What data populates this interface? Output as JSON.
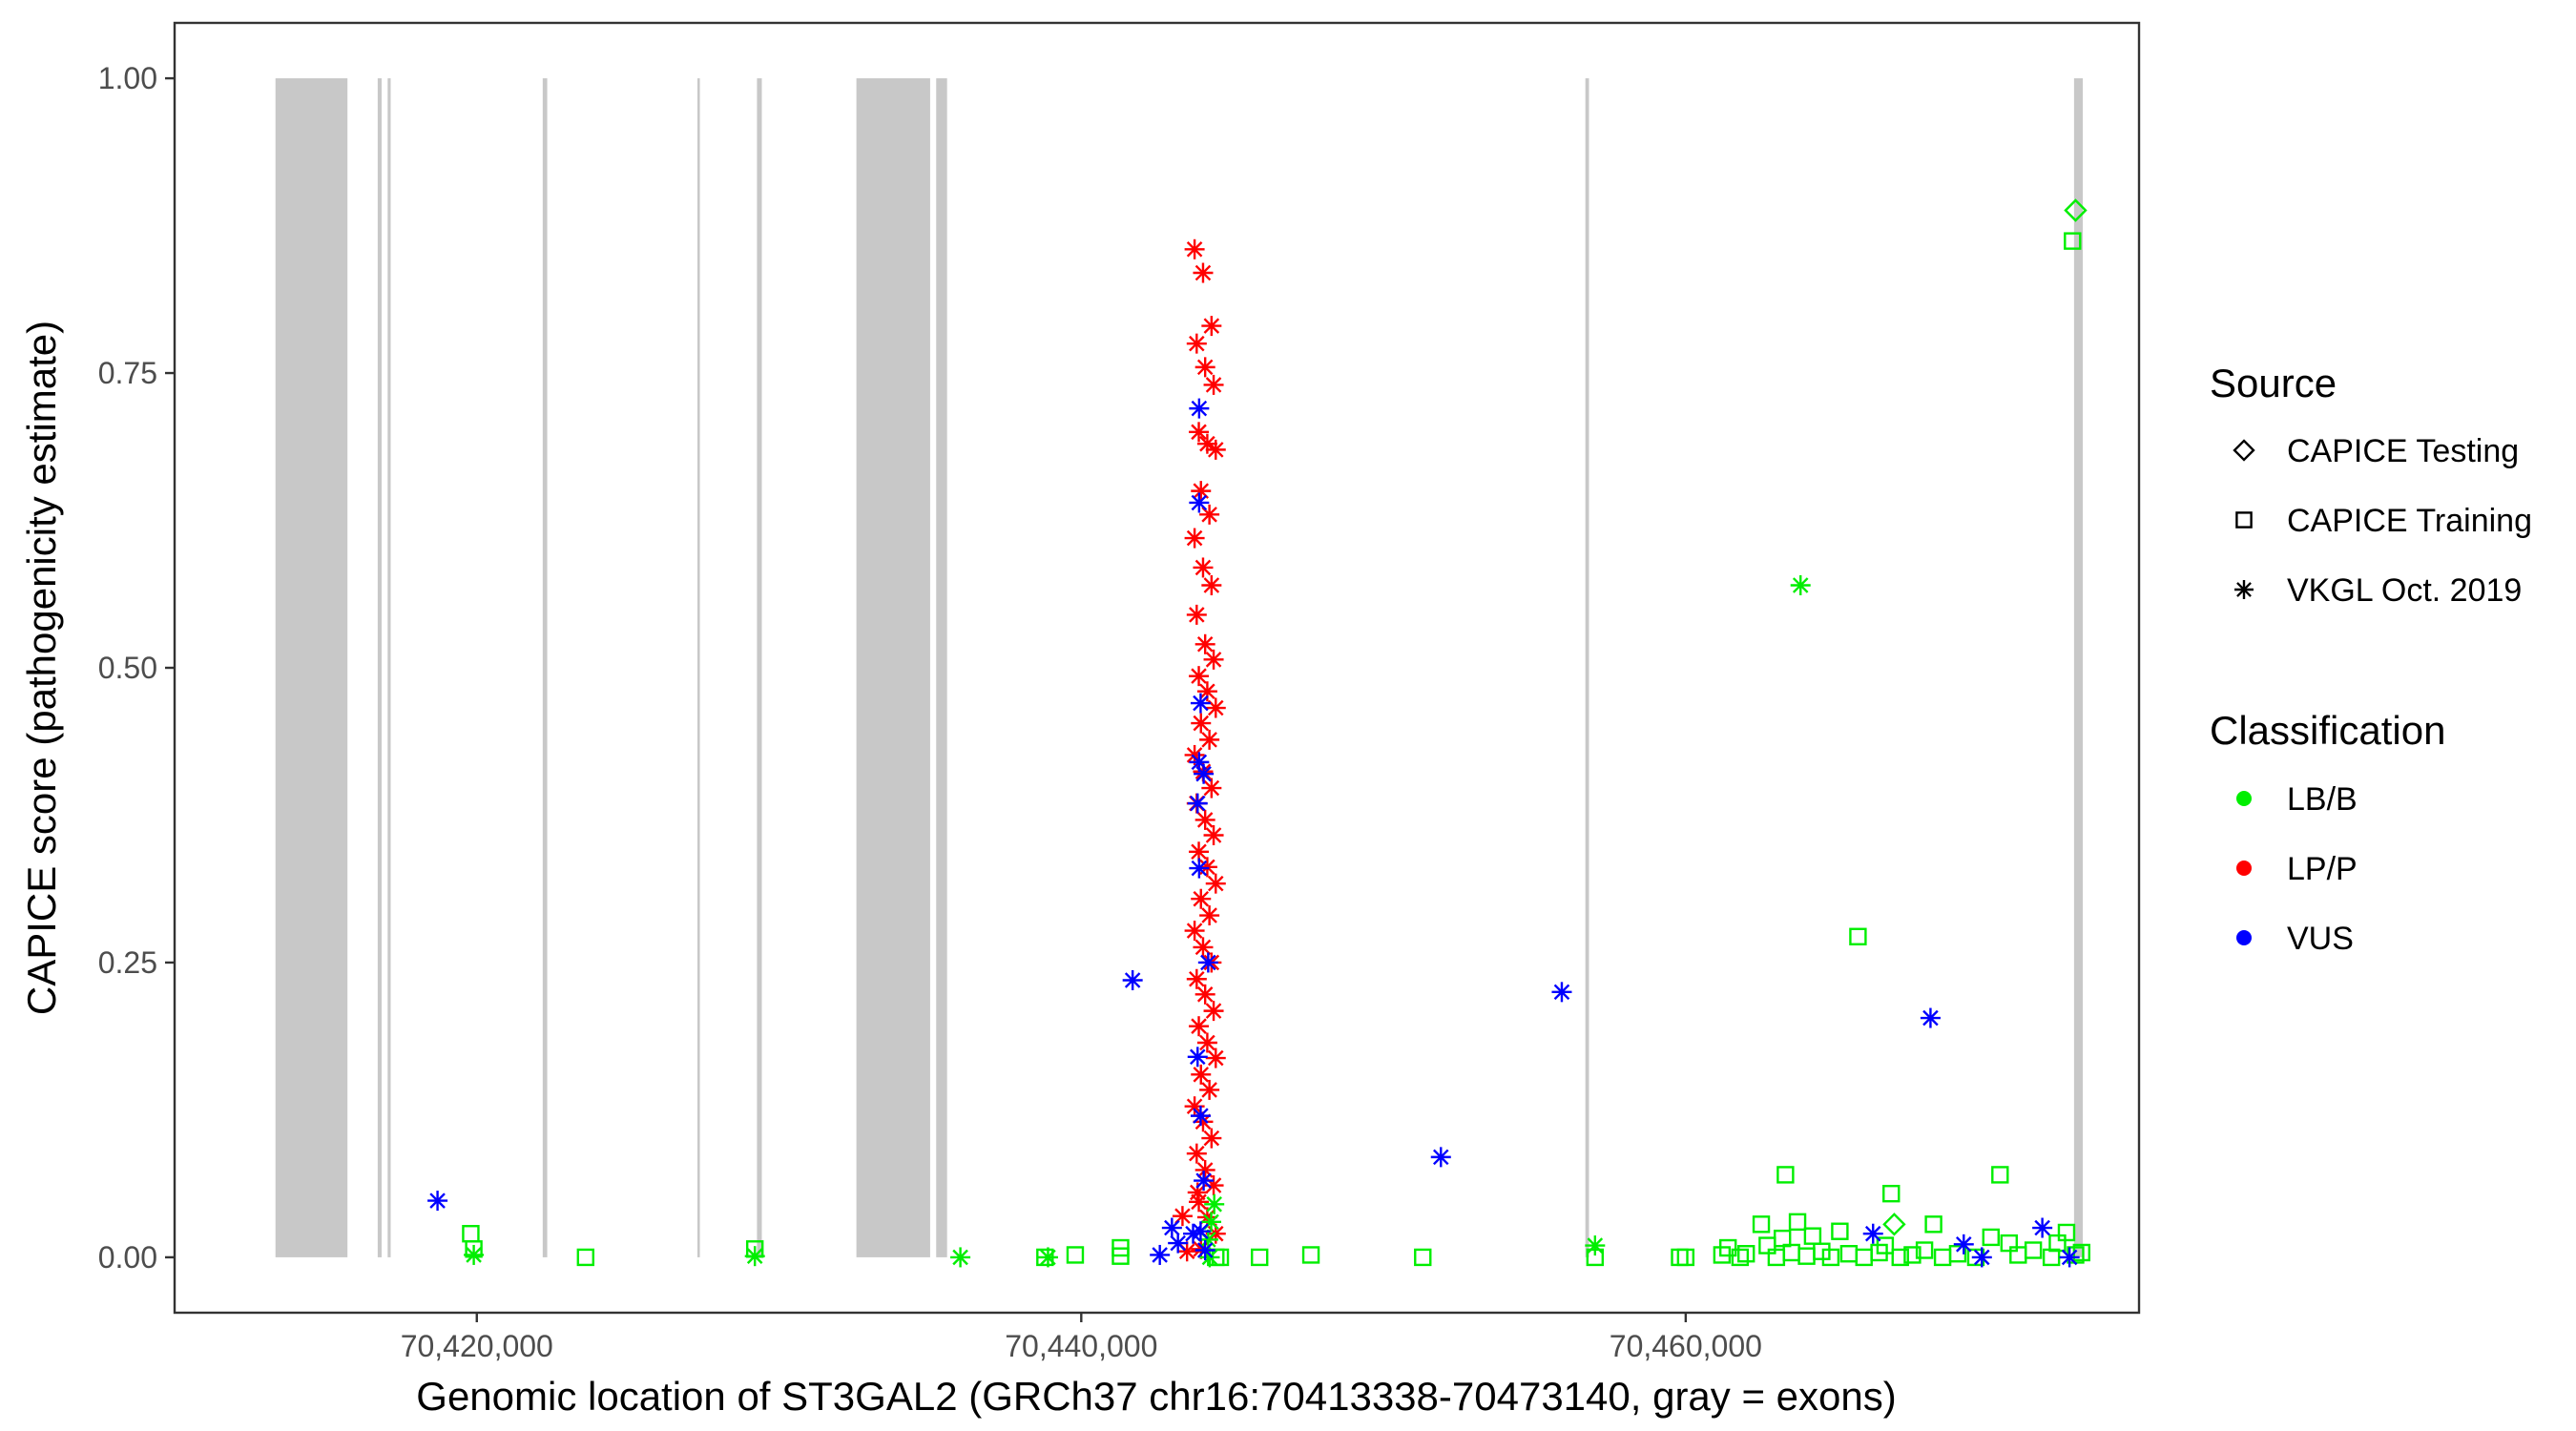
{
  "chart_data": {
    "type": "scatter",
    "title": "",
    "xlabel": "Genomic location of ST3GAL2 (GRCh37 chr16:70413338-70473140, gray = exons)",
    "ylabel": "CAPICE score (pathogenicity estimate)",
    "xlim": [
      70410000,
      70475000
    ],
    "ylim": [
      -0.047,
      1.047
    ],
    "x_ticks": [
      70420000,
      70440000,
      70460000
    ],
    "x_tick_labels": [
      "70,420,000",
      "70,440,000",
      "70,460,000"
    ],
    "y_ticks": [
      0,
      0.25,
      0.5,
      0.75,
      1
    ],
    "y_tick_labels": [
      "0.00",
      "0.25",
      "0.50",
      "0.75",
      "1.00"
    ],
    "grid": false,
    "exons": [
      [
        70413338,
        70415720
      ],
      [
        70416720,
        70416850
      ],
      [
        70417050,
        70417150
      ],
      [
        70422180,
        70422330
      ],
      [
        70427300,
        70427380
      ],
      [
        70429270,
        70429430
      ],
      [
        70432560,
        70435000
      ],
      [
        70435200,
        70435560
      ],
      [
        70456680,
        70456800
      ],
      [
        70472850,
        70473140
      ]
    ],
    "legend": {
      "position": "right",
      "source_title": "Source",
      "source_items": [
        {
          "label": "CAPICE Testing",
          "shape": "diamond"
        },
        {
          "label": "CAPICE Training",
          "shape": "square"
        },
        {
          "label": "VKGL Oct. 2019",
          "shape": "star"
        }
      ],
      "class_title": "Classification",
      "class_items": [
        {
          "label": "LB/B",
          "color": "#00ee00"
        },
        {
          "label": "LP/P",
          "color": "#ff0000"
        },
        {
          "label": "VUS",
          "color": "#0000ff"
        }
      ]
    },
    "colors": {
      "LB/B": "#00ee00",
      "LP/P": "#ff0000",
      "VUS": "#0000ff",
      "exon": "#c8c8c8"
    },
    "points": [
      {
        "x": 70418700,
        "y": 0.048,
        "source": "VKGL",
        "cls": "VUS"
      },
      {
        "x": 70419800,
        "y": 0.02,
        "source": "Training",
        "cls": "LB/B"
      },
      {
        "x": 70419900,
        "y": 0.007,
        "source": "Training",
        "cls": "LB/B"
      },
      {
        "x": 70419900,
        "y": 0.002,
        "source": "VKGL",
        "cls": "LB/B"
      },
      {
        "x": 70423600,
        "y": 0.0,
        "source": "Training",
        "cls": "LB/B"
      },
      {
        "x": 70429200,
        "y": 0.007,
        "source": "Training",
        "cls": "LB/B"
      },
      {
        "x": 70429200,
        "y": 0.001,
        "source": "VKGL",
        "cls": "LB/B"
      },
      {
        "x": 70436000,
        "y": 0.0,
        "source": "VKGL",
        "cls": "LB/B"
      },
      {
        "x": 70438800,
        "y": 0.0,
        "source": "Training",
        "cls": "LB/B"
      },
      {
        "x": 70438900,
        "y": 0.0,
        "source": "VKGL",
        "cls": "LB/B"
      },
      {
        "x": 70439800,
        "y": 0.002,
        "source": "Training",
        "cls": "LB/B"
      },
      {
        "x": 70441300,
        "y": 0.008,
        "source": "Training",
        "cls": "LB/B"
      },
      {
        "x": 70441300,
        "y": 0.001,
        "source": "Training",
        "cls": "LB/B"
      },
      {
        "x": 70441700,
        "y": 0.235,
        "source": "VKGL",
        "cls": "VUS"
      },
      {
        "x": 70442600,
        "y": 0.002,
        "source": "VKGL",
        "cls": "VUS"
      },
      {
        "x": 70443000,
        "y": 0.025,
        "source": "VKGL",
        "cls": "VUS"
      },
      {
        "x": 70443200,
        "y": 0.012,
        "source": "VKGL",
        "cls": "VUS"
      },
      {
        "x": 70443350,
        "y": 0.035,
        "source": "VKGL",
        "cls": "LP/P"
      },
      {
        "x": 70443500,
        "y": 0.005,
        "source": "VKGL",
        "cls": "LP/P"
      },
      {
        "x": 70443700,
        "y": 0.02,
        "source": "VKGL",
        "cls": "VUS"
      },
      {
        "x": 70443850,
        "y": 0.055,
        "source": "VKGL",
        "cls": "LP/P"
      },
      {
        "x": 70443900,
        "y": 0.72,
        "source": "VKGL",
        "cls": "VUS"
      },
      {
        "x": 70443900,
        "y": 0.64,
        "source": "VKGL",
        "cls": "VUS"
      },
      {
        "x": 70443950,
        "y": 0.47,
        "source": "VKGL",
        "cls": "VUS"
      },
      {
        "x": 70443900,
        "y": 0.42,
        "source": "VKGL",
        "cls": "VUS"
      },
      {
        "x": 70443850,
        "y": 0.385,
        "source": "VKGL",
        "cls": "VUS"
      },
      {
        "x": 70443900,
        "y": 0.33,
        "source": "VKGL",
        "cls": "VUS"
      },
      {
        "x": 70444050,
        "y": 0.41,
        "source": "VKGL",
        "cls": "VUS"
      },
      {
        "x": 70444200,
        "y": 0.25,
        "source": "VKGL",
        "cls": "VUS"
      },
      {
        "x": 70443850,
        "y": 0.17,
        "source": "VKGL",
        "cls": "VUS"
      },
      {
        "x": 70443950,
        "y": 0.12,
        "source": "VKGL",
        "cls": "VUS"
      },
      {
        "x": 70444050,
        "y": 0.065,
        "source": "VKGL",
        "cls": "VUS"
      },
      {
        "x": 70443950,
        "y": 0.022,
        "source": "VKGL",
        "cls": "VUS"
      },
      {
        "x": 70444100,
        "y": 0.006,
        "source": "VKGL",
        "cls": "VUS"
      },
      {
        "x": 70444300,
        "y": 0.03,
        "source": "VKGL",
        "cls": "LB/B"
      },
      {
        "x": 70444400,
        "y": 0.045,
        "source": "VKGL",
        "cls": "LB/B"
      },
      {
        "x": 70444450,
        "y": 0.0,
        "source": "Training",
        "cls": "LB/B"
      },
      {
        "x": 70444600,
        "y": 0.0,
        "source": "Training",
        "cls": "LB/B"
      },
      {
        "x": 70444200,
        "y": 0.015,
        "source": "VKGL",
        "cls": "LB/B"
      },
      {
        "x": 70444250,
        "y": 0.0,
        "source": "VKGL",
        "cls": "LB/B"
      },
      {
        "x": 70445900,
        "y": 0.0,
        "source": "Training",
        "cls": "LB/B"
      },
      {
        "x": 70447600,
        "y": 0.002,
        "source": "Training",
        "cls": "LB/B"
      },
      {
        "x": 70451300,
        "y": 0.0,
        "source": "Training",
        "cls": "LB/B"
      },
      {
        "x": 70451900,
        "y": 0.085,
        "source": "VKGL",
        "cls": "VUS"
      },
      {
        "x": 70455900,
        "y": 0.225,
        "source": "VKGL",
        "cls": "VUS"
      },
      {
        "x": 70457000,
        "y": 0.0,
        "source": "Training",
        "cls": "LB/B"
      },
      {
        "x": 70457000,
        "y": 0.01,
        "source": "VKGL",
        "cls": "LB/B"
      },
      {
        "x": 70459800,
        "y": 0.0,
        "source": "Training",
        "cls": "LB/B"
      },
      {
        "x": 70460000,
        "y": 0.0,
        "source": "Training",
        "cls": "LB/B"
      },
      {
        "x": 70461200,
        "y": 0.002,
        "source": "Training",
        "cls": "LB/B"
      },
      {
        "x": 70461400,
        "y": 0.008,
        "source": "Training",
        "cls": "LB/B"
      },
      {
        "x": 70461800,
        "y": 0.0,
        "source": "Training",
        "cls": "LB/B"
      },
      {
        "x": 70462000,
        "y": 0.003,
        "source": "Training",
        "cls": "LB/B"
      },
      {
        "x": 70462500,
        "y": 0.028,
        "source": "Training",
        "cls": "LB/B"
      },
      {
        "x": 70462700,
        "y": 0.01,
        "source": "Training",
        "cls": "LB/B"
      },
      {
        "x": 70463000,
        "y": 0.0,
        "source": "Training",
        "cls": "LB/B"
      },
      {
        "x": 70463200,
        "y": 0.016,
        "source": "Training",
        "cls": "LB/B"
      },
      {
        "x": 70463300,
        "y": 0.07,
        "source": "Training",
        "cls": "LB/B"
      },
      {
        "x": 70463500,
        "y": 0.004,
        "source": "Training",
        "cls": "LB/B"
      },
      {
        "x": 70463700,
        "y": 0.03,
        "source": "Training",
        "cls": "LB/B"
      },
      {
        "x": 70463800,
        "y": 0.57,
        "source": "VKGL",
        "cls": "LB/B"
      },
      {
        "x": 70464000,
        "y": 0.001,
        "source": "Training",
        "cls": "LB/B"
      },
      {
        "x": 70464200,
        "y": 0.018,
        "source": "Training",
        "cls": "LB/B"
      },
      {
        "x": 70464500,
        "y": 0.005,
        "source": "Training",
        "cls": "LB/B"
      },
      {
        "x": 70464800,
        "y": 0.0,
        "source": "Training",
        "cls": "LB/B"
      },
      {
        "x": 70465100,
        "y": 0.022,
        "source": "Training",
        "cls": "LB/B"
      },
      {
        "x": 70465400,
        "y": 0.003,
        "source": "Training",
        "cls": "LB/B"
      },
      {
        "x": 70465700,
        "y": 0.272,
        "source": "Training",
        "cls": "LB/B"
      },
      {
        "x": 70465900,
        "y": 0.0,
        "source": "Training",
        "cls": "LB/B"
      },
      {
        "x": 70466200,
        "y": 0.02,
        "source": "VKGL",
        "cls": "VUS"
      },
      {
        "x": 70466400,
        "y": 0.004,
        "source": "Training",
        "cls": "LB/B"
      },
      {
        "x": 70466600,
        "y": 0.01,
        "source": "Training",
        "cls": "LB/B"
      },
      {
        "x": 70466800,
        "y": 0.054,
        "source": "Training",
        "cls": "LB/B"
      },
      {
        "x": 70466900,
        "y": 0.028,
        "source": "Testing",
        "cls": "LB/B"
      },
      {
        "x": 70467100,
        "y": 0.0,
        "source": "Training",
        "cls": "LB/B"
      },
      {
        "x": 70467500,
        "y": 0.002,
        "source": "Training",
        "cls": "LB/B"
      },
      {
        "x": 70467900,
        "y": 0.006,
        "source": "Training",
        "cls": "LB/B"
      },
      {
        "x": 70468100,
        "y": 0.203,
        "source": "VKGL",
        "cls": "VUS"
      },
      {
        "x": 70468200,
        "y": 0.028,
        "source": "Training",
        "cls": "LB/B"
      },
      {
        "x": 70468500,
        "y": 0.0,
        "source": "Training",
        "cls": "LB/B"
      },
      {
        "x": 70469000,
        "y": 0.003,
        "source": "Training",
        "cls": "LB/B"
      },
      {
        "x": 70469200,
        "y": 0.011,
        "source": "VKGL",
        "cls": "VUS"
      },
      {
        "x": 70469600,
        "y": 0.0,
        "source": "Training",
        "cls": "LB/B"
      },
      {
        "x": 70469800,
        "y": 0.0,
        "source": "VKGL",
        "cls": "VUS"
      },
      {
        "x": 70470100,
        "y": 0.017,
        "source": "Training",
        "cls": "LB/B"
      },
      {
        "x": 70470400,
        "y": 0.07,
        "source": "Training",
        "cls": "LB/B"
      },
      {
        "x": 70470700,
        "y": 0.012,
        "source": "Training",
        "cls": "LB/B"
      },
      {
        "x": 70471000,
        "y": 0.002,
        "source": "Training",
        "cls": "LB/B"
      },
      {
        "x": 70471500,
        "y": 0.006,
        "source": "Training",
        "cls": "LB/B"
      },
      {
        "x": 70471800,
        "y": 0.025,
        "source": "VKGL",
        "cls": "VUS"
      },
      {
        "x": 70472100,
        "y": 0.0,
        "source": "Training",
        "cls": "LB/B"
      },
      {
        "x": 70472300,
        "y": 0.012,
        "source": "Training",
        "cls": "LB/B"
      },
      {
        "x": 70472600,
        "y": 0.021,
        "source": "Training",
        "cls": "LB/B"
      },
      {
        "x": 70472700,
        "y": 0.0,
        "source": "VKGL",
        "cls": "VUS"
      },
      {
        "x": 70472800,
        "y": 0.862,
        "source": "Training",
        "cls": "LB/B"
      },
      {
        "x": 70472900,
        "y": 0.888,
        "source": "Testing",
        "cls": "LB/B"
      },
      {
        "x": 70472900,
        "y": 0.002,
        "source": "Training",
        "cls": "LB/B"
      },
      {
        "x": 70473100,
        "y": 0.004,
        "source": "Training",
        "cls": "LB/B"
      }
    ],
    "lpp_cluster": {
      "source": "VKGL",
      "cls": "LP/P",
      "x_center": 70444100,
      "x_jitter": 350,
      "y_top": [
        0.855,
        0.835,
        0.79,
        0.775,
        0.755,
        0.74,
        0.7,
        0.69,
        0.685,
        0.65,
        0.63,
        0.61,
        0.585,
        0.57,
        0.545
      ]
    }
  }
}
